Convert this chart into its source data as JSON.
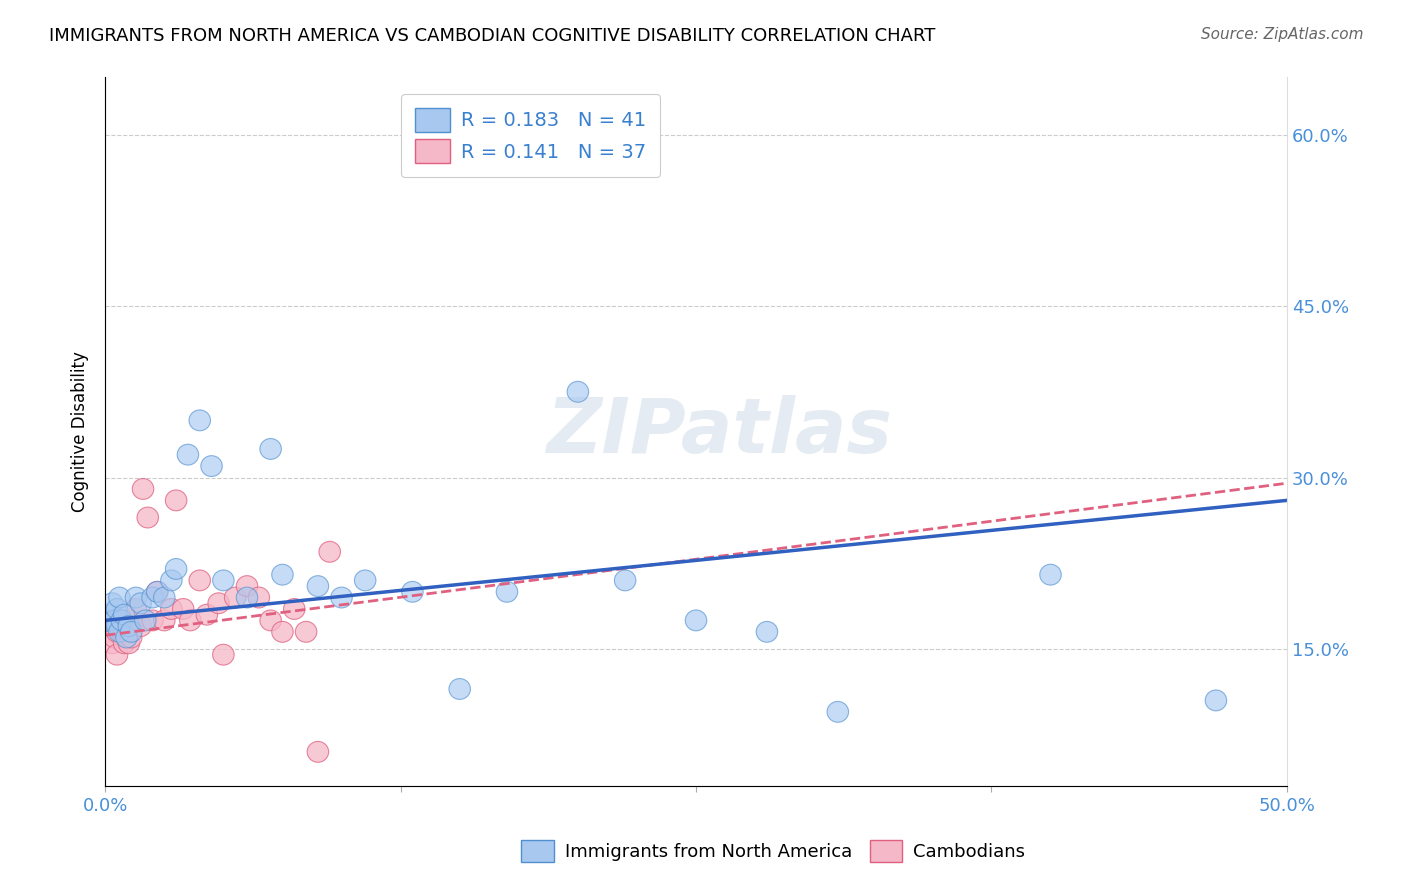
{
  "title": "IMMIGRANTS FROM NORTH AMERICA VS CAMBODIAN COGNITIVE DISABILITY CORRELATION CHART",
  "source": "Source: ZipAtlas.com",
  "ylabel": "Cognitive Disability",
  "xlim": [
    0.0,
    0.5
  ],
  "ylim": [
    0.03,
    0.65
  ],
  "yticks": [
    0.15,
    0.3,
    0.45,
    0.6
  ],
  "ytick_labels": [
    "15.0%",
    "30.0%",
    "45.0%",
    "60.0%"
  ],
  "xticks": [
    0.0,
    0.125,
    0.25,
    0.375,
    0.5
  ],
  "xtick_labels": [
    "0.0%",
    "",
    "",
    "",
    "50.0%"
  ],
  "grid_color": "#cccccc",
  "blue_color": "#a8c8f0",
  "pink_color": "#f5b8c8",
  "blue_edge_color": "#5090d0",
  "pink_edge_color": "#e06080",
  "blue_line_color": "#3060c0",
  "pink_line_color": "#e06080",
  "legend_text1": "R = 0.183   N = 41",
  "legend_text2": "R = 0.141   N = 37",
  "legend_label1": "Immigrants from North America",
  "legend_label2": "Cambodians",
  "watermark": "ZIPatlas",
  "title_fontsize": 13,
  "source_fontsize": 11,
  "blue_scatter_x": [
    0.001,
    0.002,
    0.003,
    0.004,
    0.005,
    0.005,
    0.006,
    0.006,
    0.007,
    0.008,
    0.009,
    0.01,
    0.011,
    0.013,
    0.015,
    0.017,
    0.02,
    0.022,
    0.025,
    0.028,
    0.03,
    0.035,
    0.04,
    0.045,
    0.05,
    0.06,
    0.07,
    0.075,
    0.09,
    0.1,
    0.11,
    0.13,
    0.15,
    0.17,
    0.2,
    0.22,
    0.25,
    0.28,
    0.31,
    0.4,
    0.47
  ],
  "blue_scatter_y": [
    0.175,
    0.18,
    0.19,
    0.175,
    0.17,
    0.185,
    0.195,
    0.165,
    0.175,
    0.18,
    0.16,
    0.17,
    0.165,
    0.195,
    0.19,
    0.175,
    0.195,
    0.2,
    0.195,
    0.21,
    0.22,
    0.32,
    0.35,
    0.31,
    0.21,
    0.195,
    0.325,
    0.215,
    0.205,
    0.195,
    0.21,
    0.2,
    0.115,
    0.2,
    0.375,
    0.21,
    0.175,
    0.165,
    0.095,
    0.215,
    0.105
  ],
  "pink_scatter_x": [
    0.001,
    0.002,
    0.003,
    0.004,
    0.005,
    0.005,
    0.006,
    0.007,
    0.008,
    0.009,
    0.01,
    0.011,
    0.012,
    0.013,
    0.015,
    0.016,
    0.018,
    0.02,
    0.022,
    0.025,
    0.028,
    0.03,
    0.033,
    0.036,
    0.04,
    0.043,
    0.048,
    0.05,
    0.055,
    0.06,
    0.065,
    0.07,
    0.075,
    0.08,
    0.085,
    0.09,
    0.095
  ],
  "pink_scatter_y": [
    0.175,
    0.165,
    0.155,
    0.16,
    0.145,
    0.165,
    0.175,
    0.165,
    0.155,
    0.17,
    0.155,
    0.16,
    0.175,
    0.185,
    0.17,
    0.29,
    0.265,
    0.175,
    0.2,
    0.175,
    0.185,
    0.28,
    0.185,
    0.175,
    0.21,
    0.18,
    0.19,
    0.145,
    0.195,
    0.205,
    0.195,
    0.175,
    0.165,
    0.185,
    0.165,
    0.06,
    0.235
  ],
  "blue_line_x0": 0.0,
  "blue_line_x1": 0.5,
  "blue_line_y0": 0.175,
  "blue_line_y1": 0.28,
  "pink_line_x0": 0.0,
  "pink_line_x1": 0.5,
  "pink_line_y0": 0.162,
  "pink_line_y1": 0.295
}
